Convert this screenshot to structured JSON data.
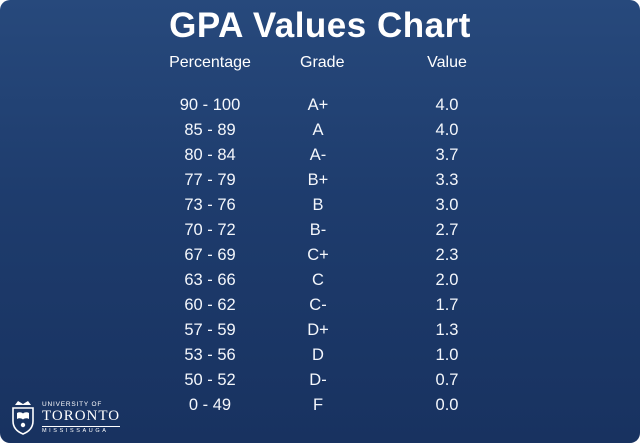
{
  "slide": {
    "title": "GPA Values Chart",
    "background_color": "#1e3c6d",
    "text_color": "#ffffff"
  },
  "table": {
    "headers": [
      "Percentage",
      "Grade",
      "Value"
    ],
    "rows": [
      [
        "90 - 100",
        "A+",
        "4.0"
      ],
      [
        "85 - 89",
        "A",
        "4.0"
      ],
      [
        "80 - 84",
        "A-",
        "3.7"
      ],
      [
        "77 - 79",
        "B+",
        "3.3"
      ],
      [
        "73 - 76",
        "B",
        "3.0"
      ],
      [
        "70 - 72",
        "B-",
        "2.7"
      ],
      [
        "67 - 69",
        "C+",
        "2.3"
      ],
      [
        "63 - 66",
        "C",
        "2.0"
      ],
      [
        "60 - 62",
        "C-",
        "1.7"
      ],
      [
        "57 - 59",
        "D+",
        "1.3"
      ],
      [
        "53 - 56",
        "D",
        "1.0"
      ],
      [
        "50 - 52",
        "D-",
        "0.7"
      ],
      [
        "0 - 49",
        "F",
        "0.0"
      ]
    ]
  },
  "logo": {
    "line1": "UNIVERSITY OF",
    "line2": "TORONTO",
    "line3": "MISSISSAUGA",
    "crest_icon": "uoft-crest-icon"
  },
  "chart_data": {
    "type": "table",
    "title": "GPA Values Chart",
    "columns": [
      "Percentage",
      "Grade",
      "Value"
    ],
    "rows": [
      [
        "90 - 100",
        "A+",
        4.0
      ],
      [
        "85 - 89",
        "A",
        4.0
      ],
      [
        "80 - 84",
        "A-",
        3.7
      ],
      [
        "77 - 79",
        "B+",
        3.3
      ],
      [
        "73 - 76",
        "B",
        3.0
      ],
      [
        "70 - 72",
        "B-",
        2.7
      ],
      [
        "67 - 69",
        "C+",
        2.3
      ],
      [
        "63 - 66",
        "C",
        2.0
      ],
      [
        "60 - 62",
        "C-",
        1.7
      ],
      [
        "57 - 59",
        "D+",
        1.3
      ],
      [
        "53 - 56",
        "D",
        1.0
      ],
      [
        "50 - 52",
        "D-",
        0.7
      ],
      [
        "0 - 49",
        "F",
        0.0
      ]
    ]
  }
}
